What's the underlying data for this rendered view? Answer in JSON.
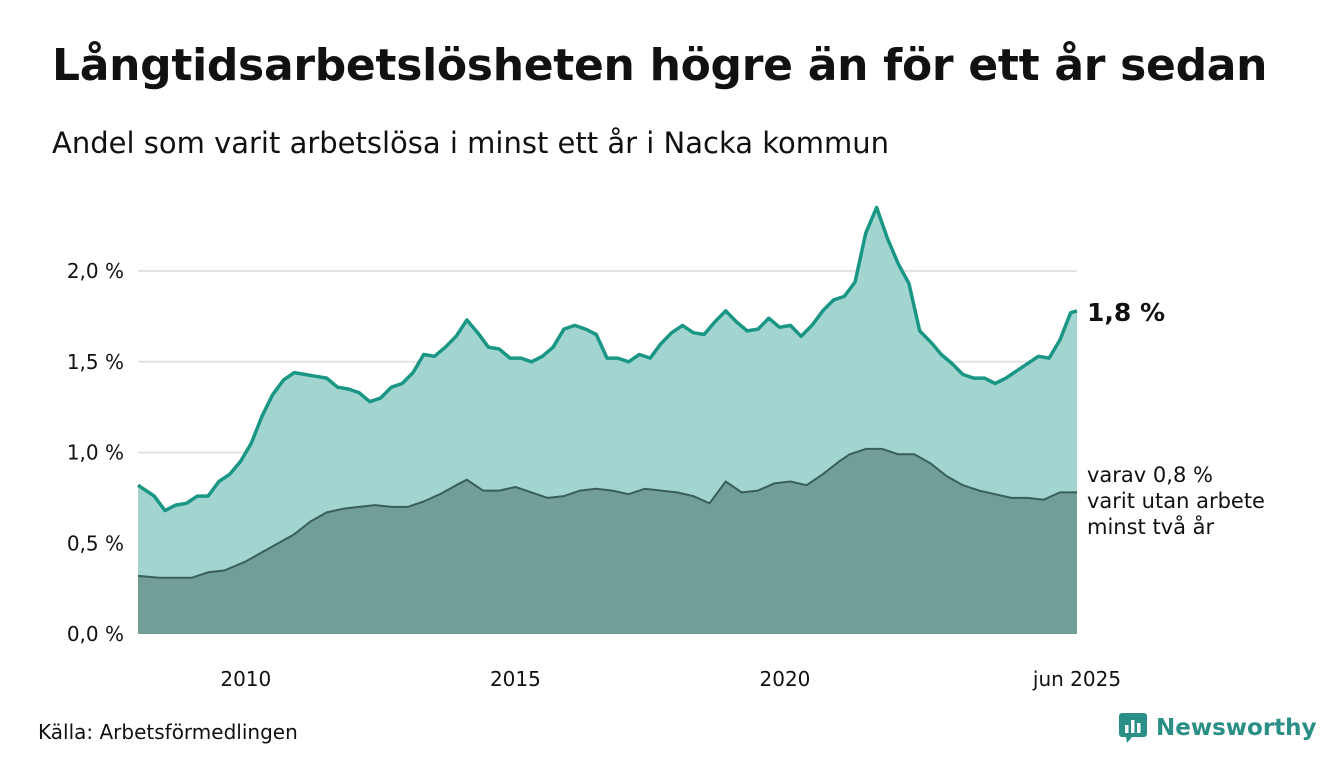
{
  "header": {
    "title": "Långtidsarbetslösheten högre än för ett år sedan",
    "subtitle": "Andel som varit arbetslösa i minst ett år i Nacka kommun"
  },
  "footer": {
    "source": "Källa: Arbetsförmedlingen",
    "brand": "Newsworthy",
    "brand_icon": "bar-chart-logo-icon"
  },
  "annotations": {
    "end_value": "1,8 %",
    "sub_line1": "varav 0,8 %",
    "sub_line2": "varit utan arbete",
    "sub_line3": "minst två år"
  },
  "colors": {
    "upper_fill": "#a2d5d0",
    "upper_line": "#1a9685",
    "lower_fill": "#729e98",
    "lower_line": "#3a5f5a",
    "grid": "#e3e3e3"
  },
  "chart_data": {
    "type": "area",
    "title": "Långtidsarbetslösheten högre än för ett år sedan",
    "subtitle": "Andel som varit arbetslösa i minst ett år i Nacka kommun",
    "xlabel": "",
    "ylabel": "",
    "ylim": [
      0,
      2.0
    ],
    "yticks": [
      0,
      0.5,
      1.0,
      1.5,
      2.0
    ],
    "ytick_labels": [
      "0,0 %",
      "0,5 %",
      "1,0 %",
      "1,5 %",
      "2,0 %"
    ],
    "xlim": [
      2008.0,
      2025.4167
    ],
    "xticks": [
      2010,
      2015,
      2020,
      2025.4167
    ],
    "xtick_labels": [
      "2010",
      "2015",
      "2020",
      "jun 2025"
    ],
    "grid": true,
    "legend": "none",
    "series": [
      {
        "values": [
          [
            2008.0,
            0.82
          ],
          [
            2008.3,
            0.76
          ],
          [
            2008.5,
            0.68
          ],
          [
            2008.7,
            0.71
          ],
          [
            2008.9,
            0.72
          ],
          [
            2009.1,
            0.76
          ],
          [
            2009.3,
            0.76
          ],
          [
            2009.5,
            0.84
          ],
          [
            2009.7,
            0.88
          ],
          [
            2009.9,
            0.95
          ],
          [
            2010.1,
            1.05
          ],
          [
            2010.3,
            1.2
          ],
          [
            2010.5,
            1.32
          ],
          [
            2010.7,
            1.4
          ],
          [
            2010.9,
            1.44
          ],
          [
            2011.1,
            1.43
          ],
          [
            2011.3,
            1.42
          ],
          [
            2011.5,
            1.41
          ],
          [
            2011.7,
            1.36
          ],
          [
            2011.9,
            1.35
          ],
          [
            2012.1,
            1.33
          ],
          [
            2012.3,
            1.28
          ],
          [
            2012.5,
            1.3
          ],
          [
            2012.7,
            1.36
          ],
          [
            2012.9,
            1.38
          ],
          [
            2013.1,
            1.44
          ],
          [
            2013.3,
            1.54
          ],
          [
            2013.5,
            1.53
          ],
          [
            2013.7,
            1.58
          ],
          [
            2013.9,
            1.64
          ],
          [
            2014.1,
            1.73
          ],
          [
            2014.3,
            1.66
          ],
          [
            2014.5,
            1.58
          ],
          [
            2014.7,
            1.57
          ],
          [
            2014.9,
            1.52
          ],
          [
            2015.1,
            1.52
          ],
          [
            2015.3,
            1.5
          ],
          [
            2015.5,
            1.53
          ],
          [
            2015.7,
            1.58
          ],
          [
            2015.9,
            1.68
          ],
          [
            2016.1,
            1.7
          ],
          [
            2016.3,
            1.68
          ],
          [
            2016.5,
            1.65
          ],
          [
            2016.7,
            1.52
          ],
          [
            2016.9,
            1.52
          ],
          [
            2017.1,
            1.5
          ],
          [
            2017.3,
            1.54
          ],
          [
            2017.5,
            1.52
          ],
          [
            2017.7,
            1.6
          ],
          [
            2017.9,
            1.66
          ],
          [
            2018.1,
            1.7
          ],
          [
            2018.3,
            1.66
          ],
          [
            2018.5,
            1.65
          ],
          [
            2018.7,
            1.72
          ],
          [
            2018.9,
            1.78
          ],
          [
            2019.1,
            1.72
          ],
          [
            2019.3,
            1.67
          ],
          [
            2019.5,
            1.68
          ],
          [
            2019.7,
            1.74
          ],
          [
            2019.9,
            1.69
          ],
          [
            2020.1,
            1.7
          ],
          [
            2020.3,
            1.64
          ],
          [
            2020.5,
            1.7
          ],
          [
            2020.7,
            1.78
          ],
          [
            2020.9,
            1.84
          ],
          [
            2021.1,
            1.86
          ],
          [
            2021.3,
            1.94
          ],
          [
            2021.5,
            2.21
          ],
          [
            2021.7,
            2.35
          ],
          [
            2021.9,
            2.18
          ],
          [
            2022.1,
            2.04
          ],
          [
            2022.3,
            1.93
          ],
          [
            2022.5,
            1.67
          ],
          [
            2022.7,
            1.61
          ],
          [
            2022.9,
            1.54
          ],
          [
            2023.1,
            1.49
          ],
          [
            2023.3,
            1.43
          ],
          [
            2023.5,
            1.41
          ],
          [
            2023.7,
            1.41
          ],
          [
            2023.9,
            1.38
          ],
          [
            2024.1,
            1.41
          ],
          [
            2024.3,
            1.45
          ],
          [
            2024.5,
            1.49
          ],
          [
            2024.7,
            1.53
          ],
          [
            2024.9,
            1.52
          ],
          [
            2025.1,
            1.62
          ],
          [
            2025.3,
            1.77
          ],
          [
            2025.4167,
            1.78
          ]
        ]
      },
      {
        "values": [
          [
            2008.0,
            0.32
          ],
          [
            2008.4,
            0.31
          ],
          [
            2008.7,
            0.31
          ],
          [
            2009.0,
            0.31
          ],
          [
            2009.3,
            0.34
          ],
          [
            2009.6,
            0.35
          ],
          [
            2010.0,
            0.4
          ],
          [
            2010.3,
            0.45
          ],
          [
            2010.6,
            0.5
          ],
          [
            2010.9,
            0.55
          ],
          [
            2011.2,
            0.62
          ],
          [
            2011.5,
            0.67
          ],
          [
            2011.8,
            0.69
          ],
          [
            2012.1,
            0.7
          ],
          [
            2012.4,
            0.71
          ],
          [
            2012.7,
            0.7
          ],
          [
            2013.0,
            0.7
          ],
          [
            2013.3,
            0.73
          ],
          [
            2013.6,
            0.77
          ],
          [
            2013.9,
            0.82
          ],
          [
            2014.1,
            0.85
          ],
          [
            2014.4,
            0.79
          ],
          [
            2014.7,
            0.79
          ],
          [
            2015.0,
            0.81
          ],
          [
            2015.3,
            0.78
          ],
          [
            2015.6,
            0.75
          ],
          [
            2015.9,
            0.76
          ],
          [
            2016.2,
            0.79
          ],
          [
            2016.5,
            0.8
          ],
          [
            2016.8,
            0.79
          ],
          [
            2017.1,
            0.77
          ],
          [
            2017.4,
            0.8
          ],
          [
            2017.7,
            0.79
          ],
          [
            2018.0,
            0.78
          ],
          [
            2018.3,
            0.76
          ],
          [
            2018.6,
            0.72
          ],
          [
            2018.9,
            0.84
          ],
          [
            2019.2,
            0.78
          ],
          [
            2019.5,
            0.79
          ],
          [
            2019.8,
            0.83
          ],
          [
            2020.1,
            0.84
          ],
          [
            2020.4,
            0.82
          ],
          [
            2020.7,
            0.88
          ],
          [
            2021.0,
            0.95
          ],
          [
            2021.2,
            0.99
          ],
          [
            2021.5,
            1.02
          ],
          [
            2021.8,
            1.02
          ],
          [
            2022.1,
            0.99
          ],
          [
            2022.4,
            0.99
          ],
          [
            2022.7,
            0.94
          ],
          [
            2023.0,
            0.87
          ],
          [
            2023.3,
            0.82
          ],
          [
            2023.6,
            0.79
          ],
          [
            2023.9,
            0.77
          ],
          [
            2024.2,
            0.75
          ],
          [
            2024.5,
            0.75
          ],
          [
            2024.8,
            0.74
          ],
          [
            2025.1,
            0.78
          ],
          [
            2025.4167,
            0.78
          ]
        ]
      }
    ]
  }
}
